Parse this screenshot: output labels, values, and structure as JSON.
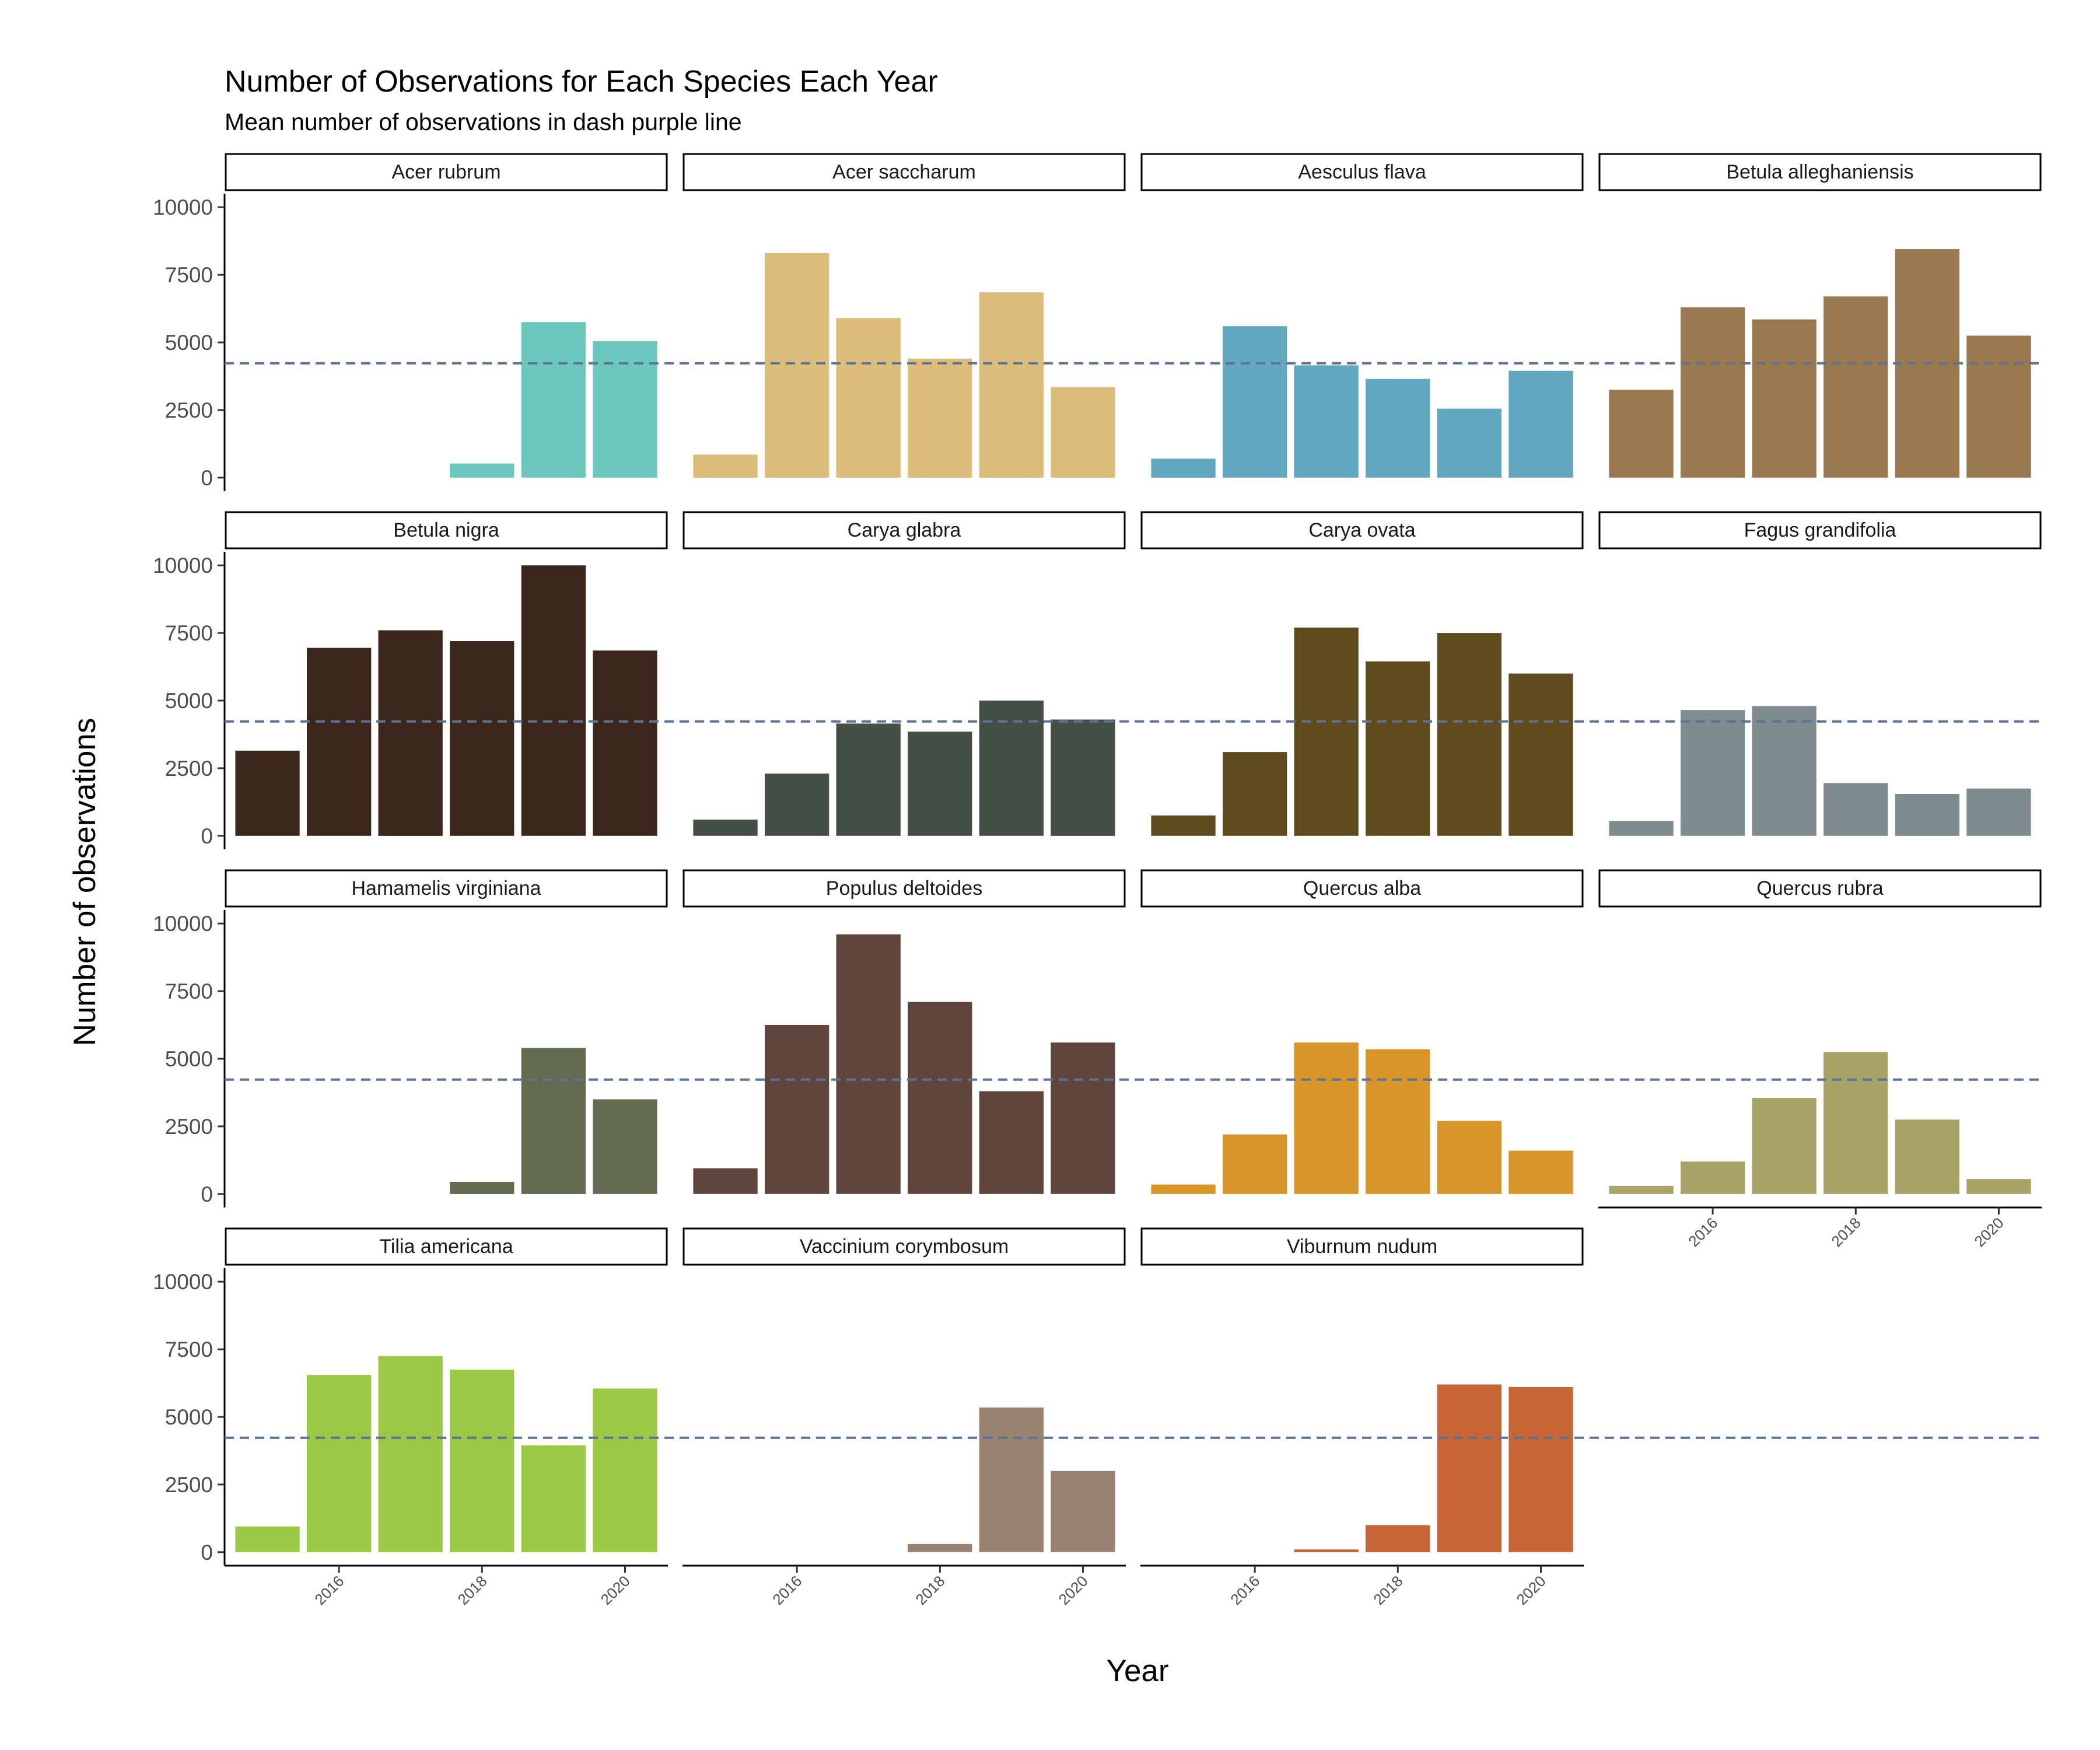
{
  "chart_data": {
    "type": "bar",
    "title": "Number of Observations for Each Species Each Year",
    "subtitle": "Mean number of observations in dash purple line",
    "xlabel": "Year",
    "ylabel": "Number of observations",
    "years": [
      2015,
      2016,
      2017,
      2018,
      2019,
      2020
    ],
    "x_tick_labels": [
      "2016",
      "2018",
      "2020"
    ],
    "y_ticks": [
      0,
      2500,
      5000,
      7500,
      10000
    ],
    "y_tick_labels": [
      "0",
      "2500",
      "5000",
      "7500",
      "10000"
    ],
    "ylim": [
      -500,
      10500
    ],
    "mean_line": 4230,
    "mean_line_color": "#5b7394",
    "grid": false,
    "legend": "none",
    "facets": [
      {
        "name": "Acer rubrum",
        "color": "#6cc7bd",
        "values": [
          0,
          0,
          0,
          520,
          5750,
          5050
        ]
      },
      {
        "name": "Acer saccharum",
        "color": "#dbbc78",
        "values": [
          850,
          8300,
          5900,
          4400,
          6850,
          3350
        ]
      },
      {
        "name": "Aesculus flava",
        "color": "#61a7bf",
        "values": [
          700,
          5600,
          4150,
          3650,
          2550,
          3950
        ]
      },
      {
        "name": "Betula alleghaniensis",
        "color": "#9a7950",
        "values": [
          3250,
          6300,
          5850,
          6700,
          8450,
          5250
        ]
      },
      {
        "name": "Betula nigra",
        "color": "#3c271d",
        "values": [
          3150,
          6950,
          7600,
          7200,
          10000,
          6850
        ]
      },
      {
        "name": "Carya glabra",
        "color": "#445045",
        "values": [
          600,
          2300,
          4150,
          3850,
          5000,
          4300
        ]
      },
      {
        "name": "Carya ovata",
        "color": "#604b1f",
        "values": [
          750,
          3100,
          7700,
          6450,
          7500,
          6000
        ]
      },
      {
        "name": "Fagus grandifolia",
        "color": "#7e8b8f",
        "values": [
          550,
          4650,
          4800,
          1950,
          1550,
          1750
        ]
      },
      {
        "name": "Hamamelis virginiana",
        "color": "#636b51",
        "values": [
          0,
          0,
          0,
          450,
          5400,
          3500
        ]
      },
      {
        "name": "Populus deltoides",
        "color": "#5f453b",
        "values": [
          950,
          6250,
          9600,
          7100,
          3800,
          5600
        ]
      },
      {
        "name": "Quercus alba",
        "color": "#d8962a",
        "values": [
          350,
          2200,
          5600,
          5350,
          2700,
          1600
        ]
      },
      {
        "name": "Quercus rubra",
        "color": "#a7a367",
        "values": [
          300,
          1200,
          3550,
          5250,
          2750,
          550
        ]
      },
      {
        "name": "Tilia americana",
        "color": "#9bc945",
        "values": [
          950,
          6550,
          7250,
          6750,
          3950,
          6050
        ]
      },
      {
        "name": "Vaccinium corymbosum",
        "color": "#9a8272",
        "values": [
          0,
          0,
          0,
          300,
          5350,
          3000
        ]
      },
      {
        "name": "Viburnum nudum",
        "color": "#c66637",
        "values": [
          0,
          0,
          100,
          1000,
          6200,
          6100
        ]
      }
    ]
  }
}
